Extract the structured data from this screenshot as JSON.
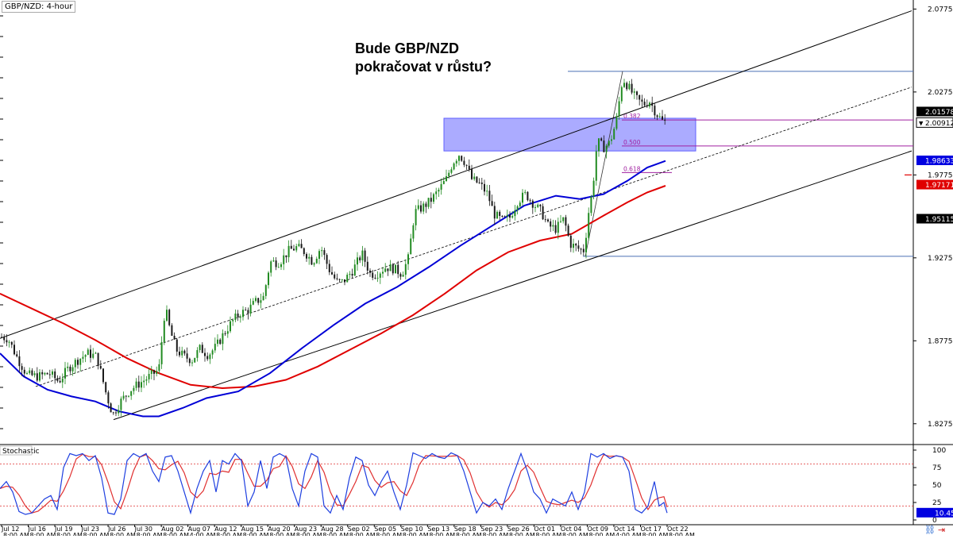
{
  "chart_data": {
    "type": "candlestick",
    "symbol_label": "GBP/NZD: 4-hour",
    "headline": [
      "Bude GBP/NZD",
      "pokračovat v růstu?"
    ],
    "y_axis": {
      "ylim": [
        1.815,
        2.083
      ],
      "tick_labels": [
        "2.07755",
        "2.02755",
        "1.97755",
        "1.92755",
        "1.87755",
        "1.82755"
      ],
      "tick_values": [
        2.07755,
        2.02755,
        1.97755,
        1.92755,
        1.87755,
        1.82755
      ]
    },
    "x_axis": {
      "tick_labels": [
        "Jul 12",
        "Jul 16",
        "Jul 19",
        "Jul 23",
        "Jul 26",
        "Jul 30",
        "Aug 02",
        "Aug 07",
        "Aug 12",
        "Aug 15",
        "Aug 20",
        "Aug 23",
        "Aug 28",
        "Sep 02",
        "Sep 05",
        "Sep 10",
        "Sep 13",
        "Sep 18",
        "Sep 23",
        "Sep 26",
        "Oct 01",
        "Oct 04",
        "Oct 09",
        "Oct 14",
        "Oct 17",
        "Oct 22"
      ],
      "time_label": "8:00 AM",
      "alt_time_label": "4:00 AM"
    },
    "price_markers": [
      {
        "label": "2.01578",
        "value": 2.01578,
        "style": "dark"
      },
      {
        "label": "2.00912",
        "value": 2.00912,
        "style": "current"
      },
      {
        "label": "1.98633",
        "value": 1.98633,
        "style": "blue"
      },
      {
        "label": "1.97171",
        "value": 1.97171,
        "style": "red"
      },
      {
        "label": "1.95115",
        "value": 1.95115,
        "style": "dark"
      }
    ],
    "fibonacci": [
      {
        "label": "0.382",
        "value": 2.0107
      },
      {
        "label": "0.500",
        "value": 1.995
      },
      {
        "label": "0.618",
        "value": 1.979
      }
    ],
    "fib_anchor_high": 2.04,
    "fib_anchor_low": 1.9285,
    "zone": {
      "from": 1.992,
      "to": 2.0117
    },
    "channel": {
      "upper": [
        [
          0,
          1.879
        ],
        [
          1148,
          2.0765
        ]
      ],
      "lower": [
        [
          143,
          1.83
        ],
        [
          1148,
          1.992
        ]
      ],
      "mid": [
        [
          45,
          1.85
        ],
        [
          1148,
          2.0305
        ]
      ]
    },
    "price_series": [
      [
        0,
        1.88
      ],
      [
        10,
        1.879
      ],
      [
        22,
        1.867
      ],
      [
        34,
        1.857
      ],
      [
        48,
        1.856
      ],
      [
        62,
        1.858
      ],
      [
        74,
        1.853
      ],
      [
        86,
        1.861
      ],
      [
        98,
        1.866
      ],
      [
        110,
        1.87
      ],
      [
        122,
        1.868
      ],
      [
        134,
        1.845
      ],
      [
        142,
        1.833
      ],
      [
        152,
        1.841
      ],
      [
        164,
        1.848
      ],
      [
        176,
        1.852
      ],
      [
        188,
        1.856
      ],
      [
        200,
        1.86
      ],
      [
        208,
        1.898
      ],
      [
        214,
        1.884
      ],
      [
        222,
        1.872
      ],
      [
        232,
        1.868
      ],
      [
        242,
        1.866
      ],
      [
        252,
        1.873
      ],
      [
        262,
        1.869
      ],
      [
        272,
        1.874
      ],
      [
        282,
        1.882
      ],
      [
        292,
        1.889
      ],
      [
        302,
        1.894
      ],
      [
        312,
        1.896
      ],
      [
        322,
        1.901
      ],
      [
        332,
        1.904
      ],
      [
        340,
        1.925
      ],
      [
        352,
        1.925
      ],
      [
        364,
        1.932
      ],
      [
        374,
        1.934
      ],
      [
        384,
        1.931
      ],
      [
        394,
        1.925
      ],
      [
        404,
        1.934
      ],
      [
        414,
        1.921
      ],
      [
        424,
        1.913
      ],
      [
        432,
        1.913
      ],
      [
        444,
        1.92
      ],
      [
        456,
        1.93
      ],
      [
        466,
        1.918
      ],
      [
        474,
        1.918
      ],
      [
        486,
        1.922
      ],
      [
        496,
        1.921
      ],
      [
        506,
        1.918
      ],
      [
        514,
        1.927
      ],
      [
        522,
        1.955
      ],
      [
        532,
        1.958
      ],
      [
        542,
        1.962
      ],
      [
        552,
        1.968
      ],
      [
        562,
        1.975
      ],
      [
        570,
        1.985
      ],
      [
        578,
        1.99
      ],
      [
        586,
        1.985
      ],
      [
        594,
        1.975
      ],
      [
        604,
        1.972
      ],
      [
        614,
        1.966
      ],
      [
        622,
        1.954
      ],
      [
        632,
        1.95
      ],
      [
        642,
        1.952
      ],
      [
        652,
        1.962
      ],
      [
        662,
        1.966
      ],
      [
        672,
        1.96
      ],
      [
        682,
        1.955
      ],
      [
        690,
        1.947
      ],
      [
        700,
        1.945
      ],
      [
        710,
        1.951
      ],
      [
        718,
        1.936
      ],
      [
        728,
        1.933
      ],
      [
        736,
        1.932
      ],
      [
        740,
        1.952
      ],
      [
        746,
        1.968
      ],
      [
        752,
        1.998
      ],
      [
        760,
        1.994
      ],
      [
        768,
        1.997
      ],
      [
        776,
        2.01
      ],
      [
        784,
        2.036
      ],
      [
        792,
        2.03
      ],
      [
        800,
        2.024
      ],
      [
        810,
        2.02
      ],
      [
        818,
        2.022
      ],
      [
        826,
        2.015
      ],
      [
        834,
        2.01
      ],
      [
        840,
        2.009
      ]
    ],
    "sma_blue": [
      [
        0,
        1.87
      ],
      [
        30,
        1.856
      ],
      [
        60,
        1.848
      ],
      [
        90,
        1.844
      ],
      [
        120,
        1.841
      ],
      [
        150,
        1.835
      ],
      [
        180,
        1.832
      ],
      [
        200,
        1.832
      ],
      [
        230,
        1.837
      ],
      [
        260,
        1.843
      ],
      [
        300,
        1.847
      ],
      [
        340,
        1.858
      ],
      [
        380,
        1.873
      ],
      [
        420,
        1.887
      ],
      [
        460,
        1.9
      ],
      [
        500,
        1.91
      ],
      [
        540,
        1.922
      ],
      [
        580,
        1.935
      ],
      [
        620,
        1.947
      ],
      [
        660,
        1.959
      ],
      [
        700,
        1.965
      ],
      [
        730,
        1.963
      ],
      [
        760,
        1.966
      ],
      [
        790,
        1.974
      ],
      [
        815,
        1.982
      ],
      [
        838,
        1.986
      ]
    ],
    "sma_red": [
      [
        0,
        1.906
      ],
      [
        40,
        1.897
      ],
      [
        80,
        1.888
      ],
      [
        120,
        1.878
      ],
      [
        160,
        1.867
      ],
      [
        200,
        1.858
      ],
      [
        240,
        1.851
      ],
      [
        280,
        1.849
      ],
      [
        320,
        1.85
      ],
      [
        360,
        1.854
      ],
      [
        400,
        1.862
      ],
      [
        440,
        1.872
      ],
      [
        480,
        1.882
      ],
      [
        520,
        1.893
      ],
      [
        560,
        1.906
      ],
      [
        600,
        1.92
      ],
      [
        640,
        1.931
      ],
      [
        680,
        1.938
      ],
      [
        720,
        1.942
      ],
      [
        760,
        1.953
      ],
      [
        790,
        1.961
      ],
      [
        815,
        1.967
      ],
      [
        838,
        1.971
      ]
    ],
    "stochastic": {
      "label": "Stochastic",
      "tick_labels": [
        "100",
        "75",
        "50",
        "25",
        "0"
      ],
      "tick_values": [
        100,
        75,
        50,
        25,
        0
      ],
      "levels": [
        80,
        20
      ],
      "value_label": "10.45",
      "k": [
        [
          0,
          45
        ],
        [
          8,
          55
        ],
        [
          16,
          40
        ],
        [
          24,
          12
        ],
        [
          32,
          8
        ],
        [
          40,
          10
        ],
        [
          48,
          20
        ],
        [
          56,
          30
        ],
        [
          64,
          35
        ],
        [
          72,
          15
        ],
        [
          80,
          75
        ],
        [
          88,
          95
        ],
        [
          96,
          92
        ],
        [
          104,
          95
        ],
        [
          112,
          85
        ],
        [
          120,
          92
        ],
        [
          128,
          60
        ],
        [
          136,
          10
        ],
        [
          144,
          8
        ],
        [
          152,
          30
        ],
        [
          160,
          85
        ],
        [
          168,
          95
        ],
        [
          176,
          90
        ],
        [
          184,
          95
        ],
        [
          192,
          70
        ],
        [
          200,
          55
        ],
        [
          208,
          90
        ],
        [
          216,
          92
        ],
        [
          224,
          70
        ],
        [
          232,
          40
        ],
        [
          240,
          10
        ],
        [
          248,
          45
        ],
        [
          256,
          70
        ],
        [
          264,
          85
        ],
        [
          272,
          40
        ],
        [
          280,
          85
        ],
        [
          288,
          80
        ],
        [
          296,
          95
        ],
        [
          304,
          85
        ],
        [
          312,
          20
        ],
        [
          320,
          40
        ],
        [
          328,
          85
        ],
        [
          336,
          45
        ],
        [
          344,
          90
        ],
        [
          352,
          95
        ],
        [
          360,
          90
        ],
        [
          368,
          45
        ],
        [
          376,
          20
        ],
        [
          384,
          70
        ],
        [
          392,
          95
        ],
        [
          400,
          90
        ],
        [
          408,
          20
        ],
        [
          416,
          10
        ],
        [
          424,
          35
        ],
        [
          432,
          15
        ],
        [
          440,
          60
        ],
        [
          448,
          90
        ],
        [
          456,
          85
        ],
        [
          464,
          50
        ],
        [
          472,
          35
        ],
        [
          480,
          55
        ],
        [
          488,
          70
        ],
        [
          496,
          40
        ],
        [
          504,
          15
        ],
        [
          512,
          50
        ],
        [
          520,
          96
        ],
        [
          528,
          92
        ],
        [
          536,
          88
        ],
        [
          544,
          95
        ],
        [
          552,
          90
        ],
        [
          560,
          88
        ],
        [
          568,
          96
        ],
        [
          576,
          92
        ],
        [
          584,
          70
        ],
        [
          592,
          40
        ],
        [
          600,
          10
        ],
        [
          608,
          25
        ],
        [
          616,
          20
        ],
        [
          624,
          30
        ],
        [
          632,
          15
        ],
        [
          640,
          45
        ],
        [
          648,
          70
        ],
        [
          656,
          95
        ],
        [
          664,
          70
        ],
        [
          672,
          40
        ],
        [
          680,
          30
        ],
        [
          688,
          10
        ],
        [
          696,
          30
        ],
        [
          704,
          25
        ],
        [
          712,
          20
        ],
        [
          720,
          40
        ],
        [
          728,
          15
        ],
        [
          736,
          40
        ],
        [
          744,
          95
        ],
        [
          752,
          90
        ],
        [
          760,
          95
        ],
        [
          768,
          88
        ],
        [
          776,
          92
        ],
        [
          784,
          90
        ],
        [
          792,
          70
        ],
        [
          800,
          15
        ],
        [
          808,
          10
        ],
        [
          816,
          20
        ],
        [
          824,
          55
        ],
        [
          830,
          20
        ],
        [
          836,
          25
        ],
        [
          840,
          10
        ]
      ]
    },
    "colors": {
      "up": "#228b22",
      "down": "#1a1a1a",
      "sma_blue": "#0000d6",
      "sma_red": "#e00000",
      "zone": "#8f8fff",
      "fib": "#a020a0",
      "level_line": "#4a6fb5",
      "stoch_k": "#1e3fe0",
      "stoch_d": "#e03030"
    }
  }
}
